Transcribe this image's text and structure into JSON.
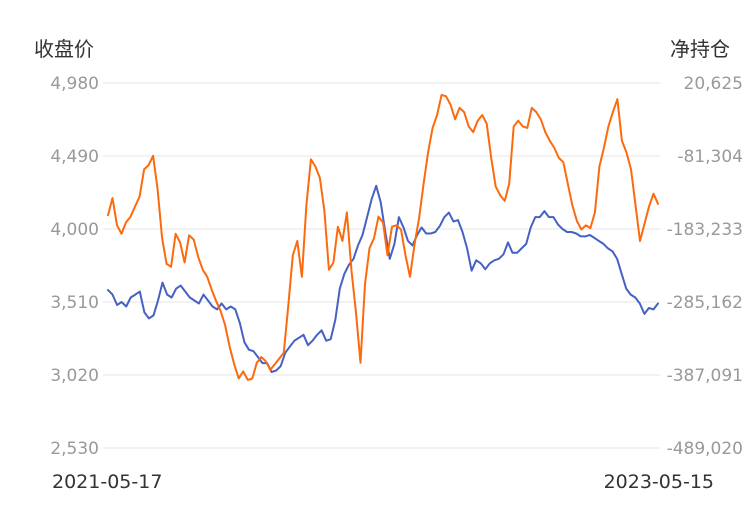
{
  "chart_data": {
    "type": "line",
    "left_axis_title": "收盘价",
    "right_axis_title": "净持仓",
    "left_ticks": [
      "4,980",
      "4,490",
      "4,000",
      "3,510",
      "3,020",
      "2,530"
    ],
    "right_ticks": [
      "20,625",
      "-81,304",
      "-183,233",
      "-285,162",
      "-387,091",
      "-489,020"
    ],
    "x_start_label": "2021-05-17",
    "x_end_label": "2023-05-15",
    "left_ylim": [
      2530,
      4980
    ],
    "right_ylim": [
      -489020,
      20625
    ],
    "grid": true,
    "series": [
      {
        "axis": "left",
        "color": "#4661c4",
        "values": [
          3590,
          3560,
          3490,
          3510,
          3480,
          3540,
          3560,
          3580,
          3440,
          3400,
          3420,
          3520,
          3640,
          3560,
          3540,
          3600,
          3620,
          3580,
          3540,
          3520,
          3500,
          3560,
          3520,
          3480,
          3460,
          3500,
          3460,
          3480,
          3460,
          3370,
          3240,
          3190,
          3180,
          3140,
          3100,
          3100,
          3040,
          3050,
          3080,
          3170,
          3210,
          3250,
          3270,
          3290,
          3220,
          3250,
          3290,
          3320,
          3250,
          3260,
          3390,
          3600,
          3700,
          3760,
          3800,
          3890,
          3960,
          4080,
          4200,
          4290,
          4180,
          3980,
          3800,
          3900,
          4080,
          4010,
          3920,
          3890,
          3960,
          4010,
          3970,
          3970,
          3980,
          4020,
          4080,
          4110,
          4050,
          4060,
          3980,
          3870,
          3720,
          3790,
          3770,
          3730,
          3770,
          3790,
          3800,
          3830,
          3910,
          3840,
          3840,
          3870,
          3900,
          4010,
          4080,
          4080,
          4120,
          4080,
          4080,
          4030,
          4000,
          3980,
          3980,
          3970,
          3950,
          3950,
          3960,
          3940,
          3920,
          3900,
          3870,
          3850,
          3800,
          3700,
          3600,
          3560,
          3540,
          3500,
          3430,
          3470,
          3460,
          3500
        ]
      },
      {
        "axis": "right",
        "color": "#fd6a0d",
        "values": [
          -164000,
          -140000,
          -178000,
          -190000,
          -174000,
          -166000,
          -152000,
          -138000,
          -100000,
          -94000,
          -81000,
          -128000,
          -196000,
          -232000,
          -236000,
          -190000,
          -202000,
          -230000,
          -192000,
          -198000,
          -222000,
          -240000,
          -250000,
          -268000,
          -284000,
          -298000,
          -318000,
          -348000,
          -372000,
          -392000,
          -382000,
          -394000,
          -392000,
          -370000,
          -362000,
          -368000,
          -380000,
          -372000,
          -364000,
          -356000,
          -290000,
          -220000,
          -200000,
          -250000,
          -150000,
          -86000,
          -96000,
          -112000,
          -158000,
          -240000,
          -230000,
          -180000,
          -200000,
          -160000,
          -240000,
          -300000,
          -370000,
          -260000,
          -210000,
          -196000,
          -166000,
          -174000,
          -220000,
          -180000,
          -178000,
          -184000,
          -220000,
          -250000,
          -204000,
          -168000,
          -120000,
          -76000,
          -42000,
          -24000,
          4000,
          2000,
          -10000,
          -30000,
          -14000,
          -20000,
          -40000,
          -48000,
          -32000,
          -24000,
          -36000,
          -84000,
          -124000,
          -136000,
          -144000,
          -120000,
          -40000,
          -32000,
          -40000,
          -42000,
          -14000,
          -20000,
          -30000,
          -48000,
          -60000,
          -70000,
          -84000,
          -90000,
          -120000,
          -150000,
          -172000,
          -184000,
          -178000,
          -182000,
          -160000,
          -96000,
          -70000,
          -40000,
          -20000,
          -2000,
          -60000,
          -76000,
          -100000,
          -150000,
          -200000,
          -176000,
          -152000,
          -134000,
          -148000
        ]
      }
    ]
  }
}
